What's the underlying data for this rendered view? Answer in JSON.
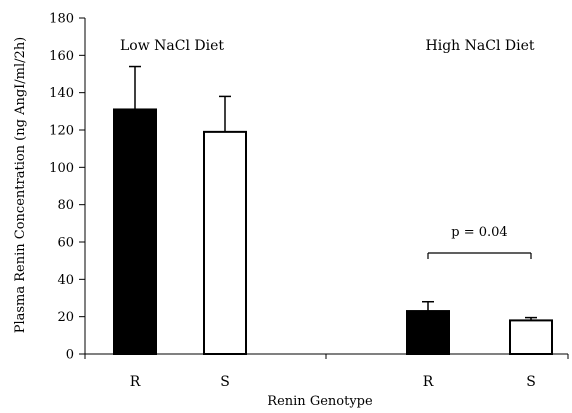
{
  "chart_data": {
    "type": "bar",
    "ylabel": "Plasma Renin Concentration (ng AngI/ml/2h)",
    "xlabel": "Renin Genotype",
    "ylim": [
      0,
      180
    ],
    "yticks": [
      0,
      20,
      40,
      60,
      80,
      100,
      120,
      140,
      160,
      180
    ],
    "groups": [
      {
        "label": "Low NaCl Diet",
        "bars": [
          {
            "category": "R",
            "value": 131,
            "error": 23,
            "fill": "black"
          },
          {
            "category": "S",
            "value": 119,
            "error": 19,
            "fill": "white"
          }
        ]
      },
      {
        "label": "High NaCl Diet",
        "bars": [
          {
            "category": "R",
            "value": 23,
            "error": 5,
            "fill": "black"
          },
          {
            "category": "S",
            "value": 18,
            "error": 1.5,
            "fill": "white"
          }
        ]
      }
    ],
    "annotations": [
      {
        "text": "p = 0.04",
        "group": 1,
        "bars": [
          0,
          1
        ]
      }
    ],
    "grid": false,
    "legend": "none"
  },
  "colors": {
    "axis": "#000000",
    "bar_dark": "#000000",
    "bar_light": "#ffffff"
  }
}
